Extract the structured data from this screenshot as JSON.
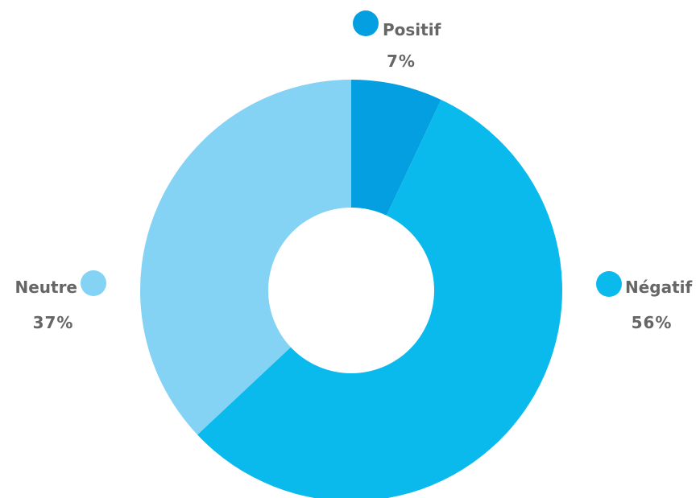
{
  "chart_data": {
    "type": "pie",
    "variant": "donut",
    "title": "",
    "slices": [
      {
        "label": "Positif",
        "value": 7,
        "display": "7%",
        "color": "#039fe0"
      },
      {
        "label": "Négatif",
        "value": 56,
        "display": "56%",
        "color": "#0bbaec"
      },
      {
        "label": "Neutre",
        "value": 37,
        "display": "37%",
        "color": "#84d2f4"
      }
    ],
    "legend": "outside-labels"
  }
}
